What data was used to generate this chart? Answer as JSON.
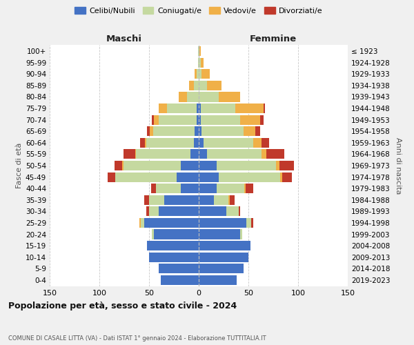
{
  "age_groups": [
    "0-4",
    "5-9",
    "10-14",
    "15-19",
    "20-24",
    "25-29",
    "30-34",
    "35-39",
    "40-44",
    "45-49",
    "50-54",
    "55-59",
    "60-64",
    "65-69",
    "70-74",
    "75-79",
    "80-84",
    "85-89",
    "90-94",
    "95-99",
    "100+"
  ],
  "birth_years": [
    "2019-2023",
    "2014-2018",
    "2009-2013",
    "2004-2008",
    "1999-2003",
    "1994-1998",
    "1989-1993",
    "1984-1988",
    "1979-1983",
    "1974-1978",
    "1969-1973",
    "1964-1968",
    "1959-1963",
    "1954-1958",
    "1949-1953",
    "1944-1948",
    "1939-1943",
    "1934-1938",
    "1929-1933",
    "1924-1928",
    "≤ 1923"
  ],
  "maschi": {
    "celibi": [
      38,
      40,
      50,
      52,
      45,
      55,
      40,
      35,
      18,
      22,
      18,
      8,
      5,
      4,
      2,
      2,
      0,
      0,
      0,
      0,
      0
    ],
    "coniugati": [
      0,
      0,
      0,
      0,
      2,
      3,
      10,
      15,
      25,
      62,
      58,
      55,
      48,
      42,
      38,
      30,
      12,
      5,
      2,
      1,
      1
    ],
    "vedovi": [
      0,
      0,
      0,
      0,
      0,
      2,
      0,
      0,
      0,
      0,
      1,
      1,
      1,
      3,
      5,
      8,
      8,
      5,
      2,
      0,
      0
    ],
    "divorziati": [
      0,
      0,
      0,
      0,
      0,
      0,
      3,
      5,
      5,
      8,
      8,
      12,
      5,
      3,
      2,
      0,
      0,
      0,
      0,
      0,
      0
    ]
  },
  "femmine": {
    "nubili": [
      38,
      45,
      50,
      52,
      42,
      48,
      28,
      15,
      18,
      20,
      18,
      8,
      5,
      3,
      2,
      2,
      0,
      0,
      0,
      0,
      0
    ],
    "coniugate": [
      0,
      0,
      0,
      0,
      2,
      5,
      12,
      15,
      28,
      62,
      60,
      55,
      50,
      42,
      40,
      35,
      20,
      8,
      3,
      2,
      1
    ],
    "vedove": [
      0,
      0,
      0,
      0,
      0,
      0,
      0,
      1,
      1,
      2,
      3,
      5,
      8,
      12,
      20,
      28,
      22,
      15,
      8,
      3,
      1
    ],
    "divorziate": [
      0,
      0,
      0,
      0,
      0,
      2,
      2,
      5,
      8,
      10,
      15,
      18,
      8,
      5,
      3,
      2,
      0,
      0,
      0,
      0,
      0
    ]
  },
  "colors": {
    "celibi": "#4472c4",
    "coniugati": "#c5d9a0",
    "vedovi": "#f0b048",
    "divorziati": "#c0392b"
  },
  "xlim": 150,
  "title": "Popolazione per età, sesso e stato civile - 2024",
  "subtitle": "COMUNE DI CASALE LITTA (VA) - Dati ISTAT 1° gennaio 2024 - Elaborazione TUTTITALIA.IT",
  "legend_labels": [
    "Celibi/Nubili",
    "Coniugati/e",
    "Vedovi/e",
    "Divorziati/e"
  ],
  "ylabel_left": "Fasce di età",
  "ylabel_right": "Anni di nascita",
  "xlabel_maschi": "Maschi",
  "xlabel_femmine": "Femmine",
  "bg_color": "#f0f0f0",
  "plot_bg": "#ffffff"
}
